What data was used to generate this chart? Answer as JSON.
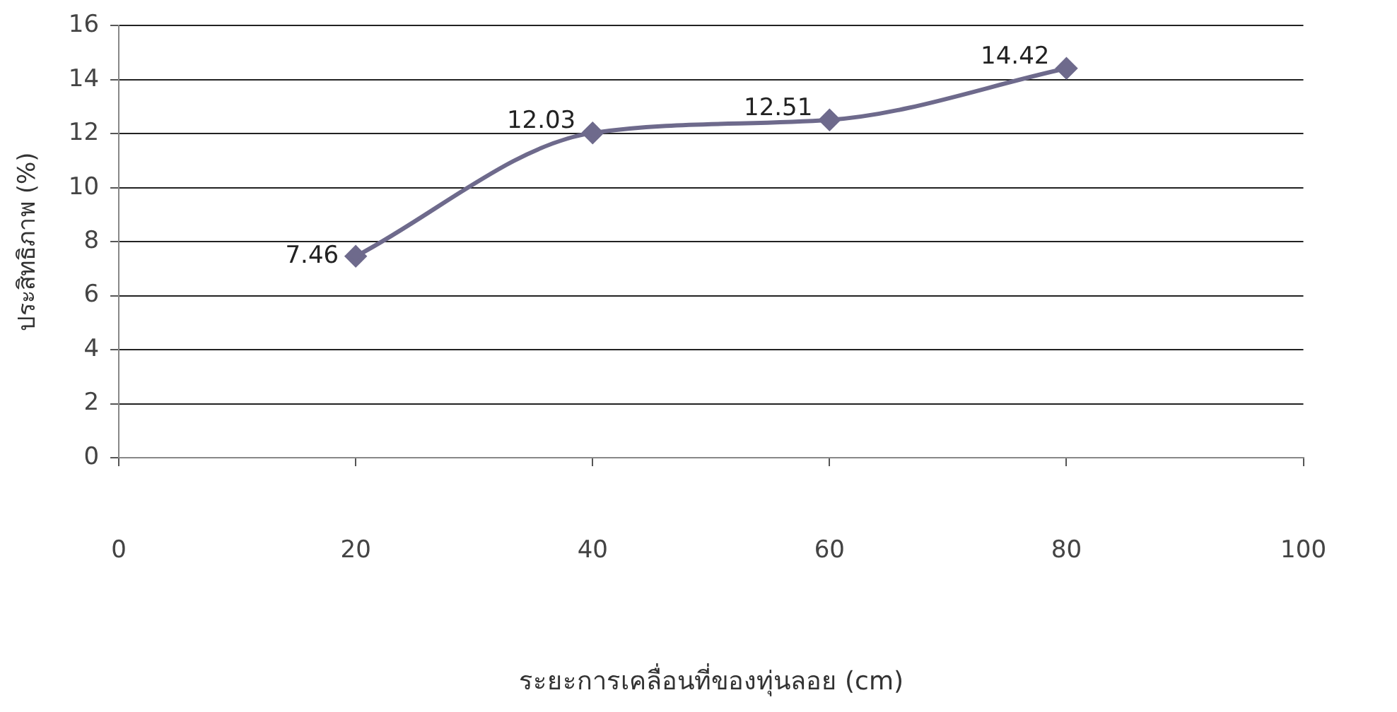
{
  "chart_data": {
    "type": "line",
    "xlabel": "ระยะการเคลื่อนที่ของทุ่นลอย (cm)",
    "ylabel": "ประสิทธิภาพ (%)",
    "x": [
      20,
      40,
      60,
      80
    ],
    "series": [
      {
        "color": "#6e6a8c",
        "values": [
          7.46,
          12.03,
          12.51,
          14.42
        ]
      }
    ],
    "xlim": [
      0,
      100
    ],
    "xticks": [
      0,
      20,
      40,
      60,
      80,
      100
    ],
    "ylim": [
      0,
      16
    ],
    "yticks": [
      0,
      2,
      4,
      6,
      8,
      10,
      12,
      14,
      16
    ],
    "grid": "y",
    "legend": false,
    "marker": "diamond",
    "line_style": "solid",
    "data_labels": true
  }
}
